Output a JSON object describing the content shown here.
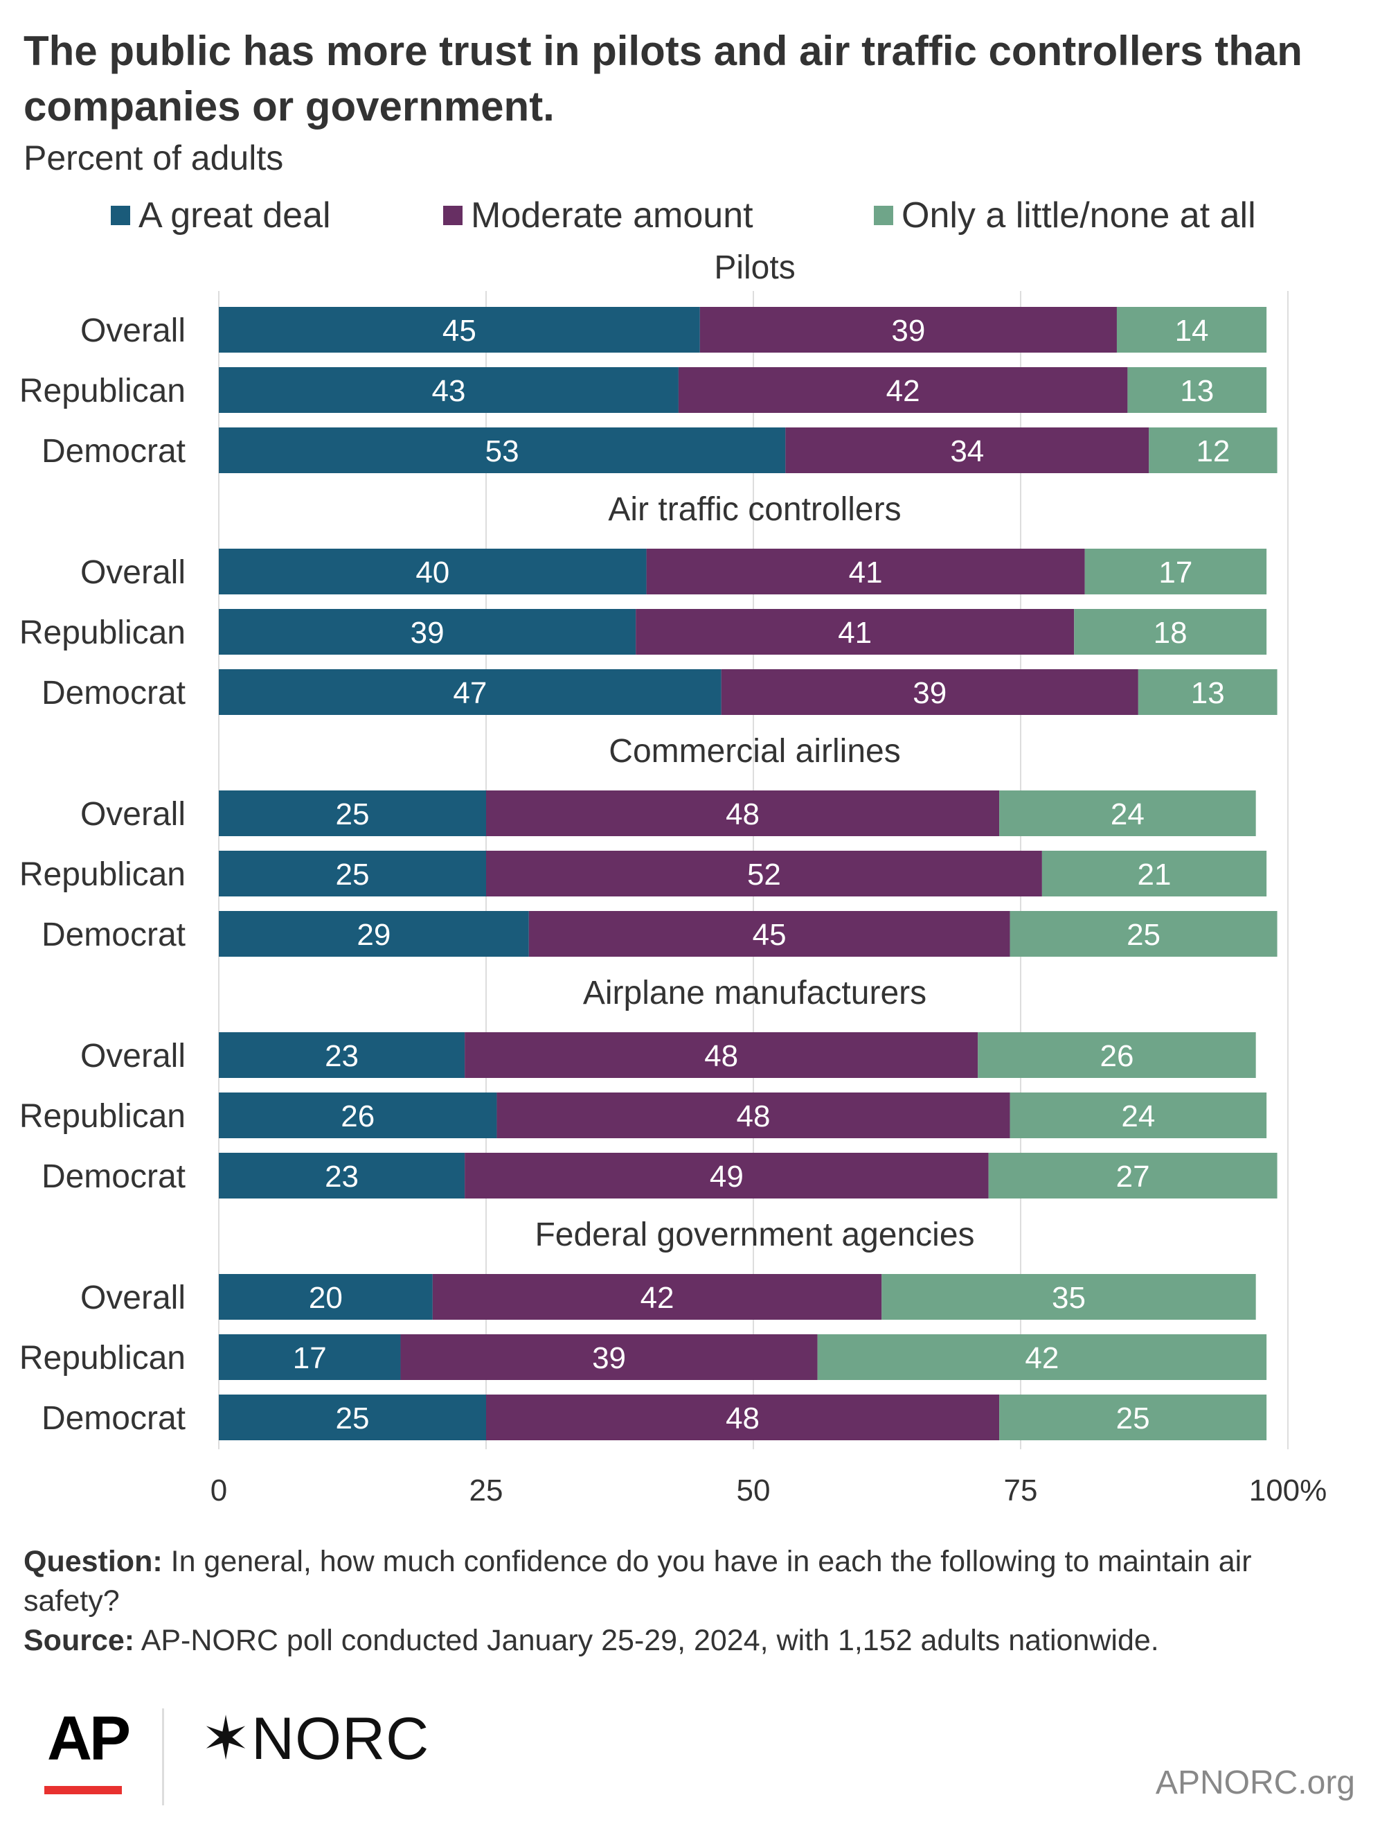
{
  "title": "The public has more trust in pilots and air traffic controllers than companies or government.",
  "subtitle": "Percent of adults",
  "colors": {
    "great_deal": "#1a5b7a",
    "moderate": "#672f63",
    "little": "#6fa589",
    "grid": "#dddddd",
    "axis_text": "#333333"
  },
  "footer": {
    "question_label": "Question:",
    "question_text": "In general, how much confidence do you have in each the following to maintain air safety?",
    "source_label": "Source:",
    "source_text": "AP-NORC poll conducted January 25-29, 2024, with 1,152 adults nationwide.",
    "site": "APNORC.org",
    "logo_ap": "AP",
    "logo_norc": "✶NORC"
  },
  "chart_data": {
    "type": "bar",
    "orientation": "horizontal",
    "stacked": true,
    "series_names": [
      "A great deal",
      "Moderate amount",
      "Only a little/none at all"
    ],
    "x_ticks": [
      "0",
      "25",
      "50",
      "75",
      "100%"
    ],
    "xlim": [
      0,
      100
    ],
    "grid": true,
    "legend_position": "top",
    "groups": [
      {
        "name": "Pilots",
        "rows": [
          {
            "label": "Overall",
            "values": [
              45,
              39,
              14
            ]
          },
          {
            "label": "Republican",
            "values": [
              43,
              42,
              13
            ]
          },
          {
            "label": "Democrat",
            "values": [
              53,
              34,
              12
            ]
          }
        ]
      },
      {
        "name": "Air traffic controllers",
        "rows": [
          {
            "label": "Overall",
            "values": [
              40,
              41,
              17
            ]
          },
          {
            "label": "Republican",
            "values": [
              39,
              41,
              18
            ]
          },
          {
            "label": "Democrat",
            "values": [
              47,
              39,
              13
            ]
          }
        ]
      },
      {
        "name": "Commercial airlines",
        "rows": [
          {
            "label": "Overall",
            "values": [
              25,
              48,
              24
            ]
          },
          {
            "label": "Republican",
            "values": [
              25,
              52,
              21
            ]
          },
          {
            "label": "Democrat",
            "values": [
              29,
              45,
              25
            ]
          }
        ]
      },
      {
        "name": "Airplane manufacturers",
        "rows": [
          {
            "label": "Overall",
            "values": [
              23,
              48,
              26
            ]
          },
          {
            "label": "Republican",
            "values": [
              26,
              48,
              24
            ]
          },
          {
            "label": "Democrat",
            "values": [
              23,
              49,
              27
            ]
          }
        ]
      },
      {
        "name": "Federal government agencies",
        "rows": [
          {
            "label": "Overall",
            "values": [
              20,
              42,
              35
            ]
          },
          {
            "label": "Republican",
            "values": [
              17,
              39,
              42
            ]
          },
          {
            "label": "Democrat",
            "values": [
              25,
              48,
              25
            ]
          }
        ]
      }
    ]
  }
}
